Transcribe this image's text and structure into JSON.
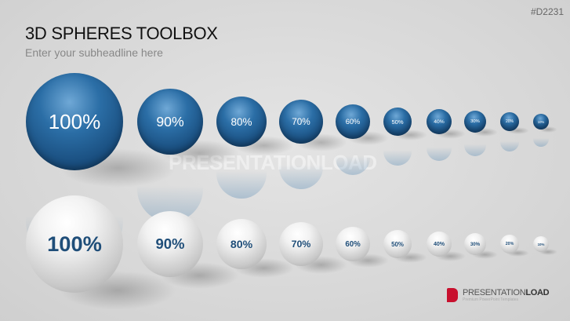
{
  "slide": {
    "code": "#D2231",
    "title": "3D SPHERES TOOLBOX",
    "subheadline": "Enter your subheadline here",
    "watermark": "PRESENTATIONLOAD"
  },
  "blue_row": [
    "100%",
    "90%",
    "80%",
    "70%",
    "60%",
    "50%",
    "40%",
    "30%",
    "20%",
    "10%"
  ],
  "white_row": [
    "100%",
    "90%",
    "80%",
    "70%",
    "60%",
    "50%",
    "40%",
    "30%",
    "20%",
    "10%"
  ],
  "colors": {
    "blue_sphere": "#2b6ea6",
    "white_sphere": "#f2f2f2",
    "white_label": "#1f4e79",
    "logo_red": "#c8102e"
  },
  "logo": {
    "name_light": "PRESENTATION",
    "name_bold": "LOAD",
    "tagline": "Premium PowerPoint Templates"
  }
}
